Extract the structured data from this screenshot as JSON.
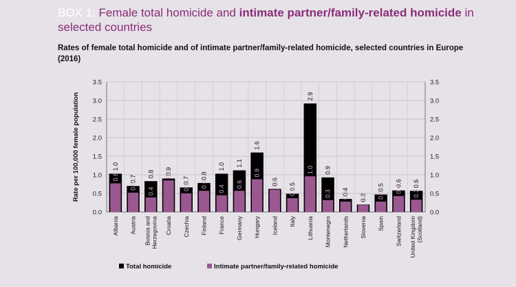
{
  "header": {
    "box_label": "BOX 1:",
    "title_part1": " Female total homicide and ",
    "title_bold": "intimate partner/family-related homicide",
    "title_part2": " in selected countries"
  },
  "chart_data": {
    "type": "bar",
    "title": "Rates of female total homicide and of intimate partner/family-related homicide, selected countries in Europe (2016)",
    "ylabel": "Rate per 100,000 female population",
    "ylim": [
      0,
      3.5
    ],
    "yticks": [
      "0.0",
      "0.5",
      "1.0",
      "1.5",
      "2.0",
      "2.5",
      "3.0",
      "3.5"
    ],
    "categories": [
      "Albania",
      "Austria",
      "Bosnia and Herzegovina",
      "Croatia",
      "Czechia",
      "Finland",
      "France",
      "Germany",
      "Hungary",
      "Iceland",
      "Italy",
      "Lithuania",
      "Montenegro",
      "Netherlands",
      "Slovenia",
      "Spain",
      "Switzerland",
      "United Kingdom (Scotland)"
    ],
    "category_lines": [
      [
        "Albania"
      ],
      [
        "Austria"
      ],
      [
        "Bosnia and",
        "Herzegovina"
      ],
      [
        "Croatia"
      ],
      [
        "Czechia"
      ],
      [
        "Finland"
      ],
      [
        "France"
      ],
      [
        "Germany"
      ],
      [
        "Hungary"
      ],
      [
        "Iceland"
      ],
      [
        "Italy"
      ],
      [
        "Lithuania"
      ],
      [
        "Montenegro"
      ],
      [
        "Netherlands"
      ],
      [
        "Slovenia"
      ],
      [
        "Spain"
      ],
      [
        "Switzerland"
      ],
      [
        "United Kingdom",
        "(Scotland)"
      ]
    ],
    "series": [
      {
        "name": "Total homicide",
        "color": "#000000",
        "values": [
          1.03,
          0.7,
          0.83,
          0.9,
          0.66,
          0.78,
          1.03,
          1.12,
          1.6,
          0.62,
          0.49,
          2.92,
          0.93,
          0.35,
          0.2,
          0.47,
          0.58,
          0.57
        ],
        "labels": [
          "1.0",
          "0.7",
          "0.8",
          "0.9",
          "0.7",
          "0.8",
          "1.0",
          "1.1",
          "1.6",
          "0.6",
          "0.5",
          "2.9",
          "0.9",
          "0.4",
          "0.2",
          "0.5",
          "0.6",
          "0.6"
        ]
      },
      {
        "name": "Intimate partner/family-related homicide",
        "color": "#9b5890",
        "values": [
          0.77,
          0.52,
          0.39,
          0.85,
          0.5,
          0.57,
          0.45,
          0.57,
          0.88,
          0.6,
          0.37,
          0.96,
          0.32,
          0.28,
          0.19,
          0.28,
          0.43,
          0.33
        ],
        "labels": [
          "0.8",
          "0.5",
          "0.4",
          "0.8",
          "0.5",
          "0.6",
          "0.4",
          "0.6",
          "0.9",
          "0.6",
          "0.4",
          "1.0",
          "0.3",
          "0.3",
          "0.2",
          "0.3",
          "0.4",
          "0.3"
        ]
      }
    ],
    "legend_position": "bottom"
  }
}
